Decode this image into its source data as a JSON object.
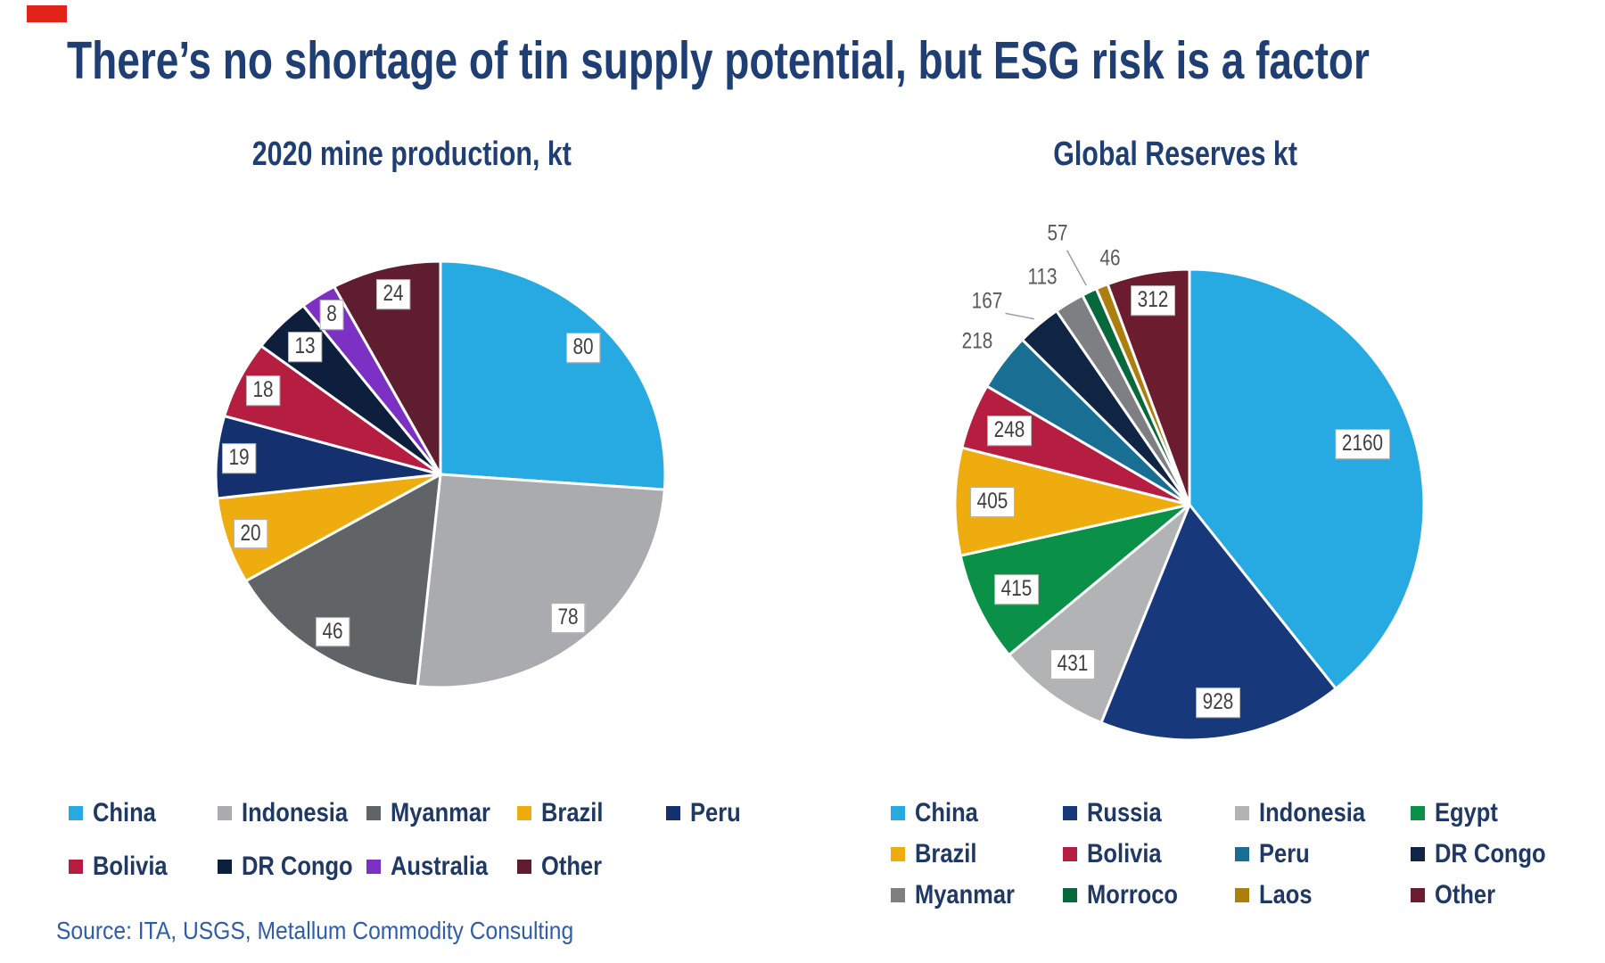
{
  "accent_mark": {
    "color": "#E2231A"
  },
  "title": "There’s no shortage of tin supply potential, but ESG risk is a factor",
  "source": "Source: ITA, USGS, Metallum Commodity Consulting",
  "text_colors": {
    "title": "#1F3E74",
    "legend": "#1F3864",
    "source": "#2F5DA9",
    "label_boxed": "#3F3F3F",
    "label_plain": "#595959"
  },
  "chart_data": [
    {
      "type": "pie",
      "title": "2020 mine production, kt",
      "units": "kt",
      "total": 306,
      "start_angle_deg": 0,
      "direction": "clockwise",
      "legend_position": "bottom",
      "legend_per_row": 5,
      "categories": [
        "China",
        "Indonesia",
        "Myanmar",
        "Brazil",
        "Peru",
        "Bolivia",
        "DR Congo",
        "Australia",
        "Other"
      ],
      "values": [
        80,
        78,
        46,
        20,
        19,
        18,
        13,
        8,
        24
      ],
      "colors": [
        "#27AAE1",
        "#A9ABAE",
        "#616467",
        "#EFAC0E",
        "#15306E",
        "#B51E41",
        "#0E1F3D",
        "#7D31C4",
        "#5F1E2F"
      ],
      "labels": [
        {
          "text": "80",
          "boxed": true,
          "rf": 0.87
        },
        {
          "text": "78",
          "boxed": true,
          "rf": 0.88
        },
        {
          "text": "46",
          "boxed": true,
          "rf": 0.88
        },
        {
          "text": "20",
          "boxed": true,
          "rf": 0.89
        },
        {
          "text": "19",
          "boxed": true,
          "rf": 0.9
        },
        {
          "text": "18",
          "boxed": true,
          "rf": 0.88
        },
        {
          "text": "13",
          "boxed": true,
          "rf": 0.85
        },
        {
          "text": "8",
          "boxed": true,
          "rf": 0.89
        },
        {
          "text": "24",
          "boxed": true,
          "rf": 0.87
        }
      ]
    },
    {
      "type": "pie",
      "title": "Global Reserves kt",
      "units": "kt",
      "total": 5500,
      "start_angle_deg": 0,
      "direction": "clockwise",
      "legend_position": "bottom",
      "legend_per_row": 4,
      "categories": [
        "China",
        "Russia",
        "Indonesia",
        "Egypt",
        "Brazil",
        "Bolivia",
        "Peru",
        "DR Congo",
        "Myanmar",
        "Morroco",
        "Laos",
        "Other"
      ],
      "values": [
        2160,
        928,
        431,
        415,
        405,
        248,
        218,
        167,
        113,
        57,
        46,
        312
      ],
      "colors": [
        "#27AAE1",
        "#17397C",
        "#B2B3B5",
        "#0A9147",
        "#EFAC0E",
        "#B51E41",
        "#196F93",
        "#102544",
        "#7D7F82",
        "#07683B",
        "#AC7E10",
        "#6C1C2F"
      ],
      "labels": [
        {
          "text": "2160",
          "boxed": true,
          "rf": 0.78
        },
        {
          "text": "928",
          "boxed": true,
          "rf": 0.85
        },
        {
          "text": "431",
          "boxed": true,
          "rf": 0.84
        },
        {
          "text": "415",
          "boxed": true,
          "rf": 0.82
        },
        {
          "text": "405",
          "boxed": true,
          "rf": 0.84
        },
        {
          "text": "248",
          "boxed": true,
          "rf": 0.83
        },
        {
          "text": "218",
          "boxed": false,
          "rf": 1.14
        },
        {
          "text": "167",
          "boxed": false,
          "rf": 1.22,
          "angle": 315,
          "leader": {
            "a1": 320,
            "r1": 1.03,
            "a2": 316,
            "r2": 1.13
          }
        },
        {
          "text": "113",
          "boxed": false,
          "rf": 1.15,
          "angle": 327
        },
        {
          "text": "57",
          "boxed": false,
          "rf": 1.28,
          "angle": 334,
          "leader": {
            "a1": 334.7,
            "r1": 1.03,
            "a2": 334.2,
            "r2": 1.2
          }
        },
        {
          "text": "46",
          "boxed": false,
          "rf": 1.1,
          "angle": 342
        },
        {
          "text": "312",
          "boxed": true,
          "rf": 0.88
        }
      ]
    }
  ]
}
